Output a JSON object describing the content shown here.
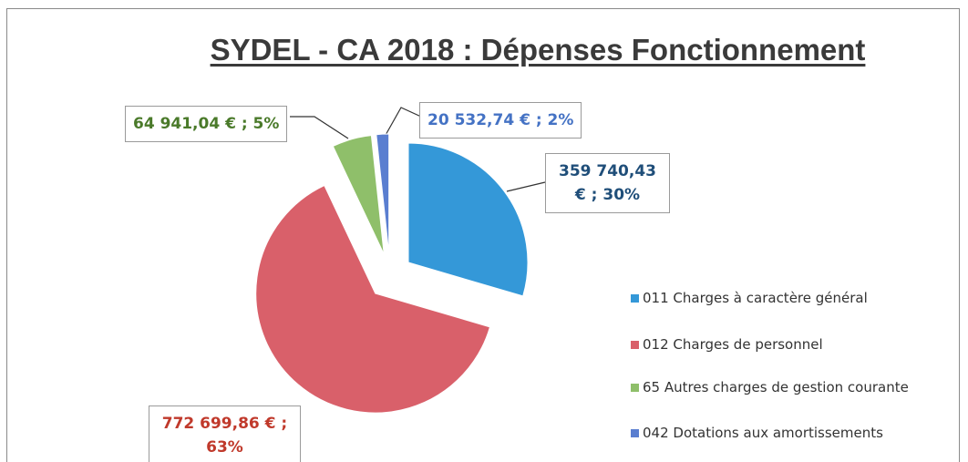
{
  "chart_data": {
    "type": "pie",
    "title": "SYDEL - CA 2018 : Dépenses Fonctionnement",
    "categories": [
      "011 Charges à caractère général",
      "012 Charges de personnel",
      "65 Autres charges de gestion courante",
      "042 Dotations aux amortissements"
    ],
    "values": [
      359740.43,
      772699.86,
      64941.04,
      20532.74
    ],
    "value_labels": [
      "359 740,43 € ; 30%",
      "772 699,86 € ; 63%",
      "64 941,04 € ; 5%",
      "20 532,74 € ; 2%"
    ],
    "colors": [
      "#3498d8",
      "#d9606a",
      "#8fbf6a",
      "#5a7ed0"
    ],
    "label_colors": [
      "#1f4e79",
      "#c0392b",
      "#4a7a2a",
      "#4472c4"
    ],
    "legend": "right"
  }
}
